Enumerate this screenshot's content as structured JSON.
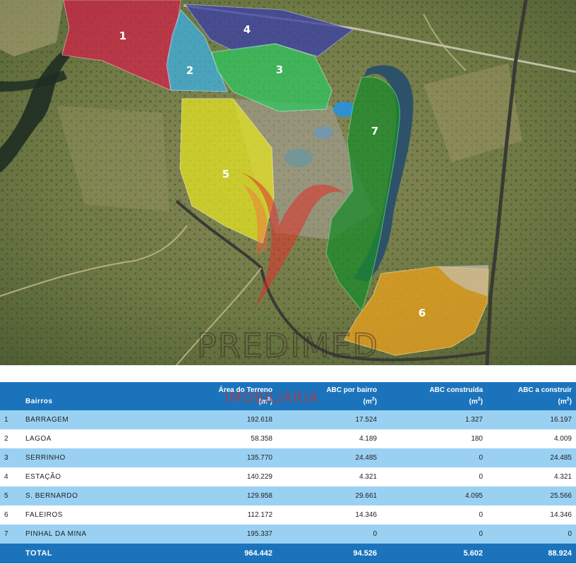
{
  "map": {
    "zones": [
      {
        "id": "1",
        "color": "#d42048"
      },
      {
        "id": "2",
        "color": "#3ab2e6"
      },
      {
        "id": "3",
        "color": "#2fc55e"
      },
      {
        "id": "4",
        "color": "#3a3ea8"
      },
      {
        "id": "5",
        "color": "#e6e620"
      },
      {
        "id": "6",
        "color": "#e6a020"
      },
      {
        "id": "7",
        "color": "#1a8a2a"
      }
    ],
    "watermark": {
      "brand": "PREDIMED",
      "sub": "IMOBILIÁRIA"
    }
  },
  "table": {
    "headers": {
      "bairros": "Bairros",
      "area": "Área do Terreno",
      "abc_bairro": "ABC por bairro",
      "abc_construida": "ABC construída",
      "abc_construir": "ABC a construir",
      "unit": "(m",
      "unit_exp": "2",
      "unit_close": ")"
    },
    "rows": [
      {
        "idx": "1",
        "name": "BARRAGEM",
        "area": "192.618",
        "abc_bairro": "17.524",
        "abc_construida": "1.327",
        "abc_construir": "16.197"
      },
      {
        "idx": "2",
        "name": "LAGOA",
        "area": "58.358",
        "abc_bairro": "4.189",
        "abc_construida": "180",
        "abc_construir": "4.009"
      },
      {
        "idx": "3",
        "name": "SERRINHO",
        "area": "135.770",
        "abc_bairro": "24.485",
        "abc_construida": "0",
        "abc_construir": "24.485"
      },
      {
        "idx": "4",
        "name": "ESTAÇÃO",
        "area": "140.229",
        "abc_bairro": "4.321",
        "abc_construida": "0",
        "abc_construir": "4.321"
      },
      {
        "idx": "5",
        "name": "S. BERNARDO",
        "area": "129.958",
        "abc_bairro": "29.661",
        "abc_construida": "4.095",
        "abc_construir": "25.566"
      },
      {
        "idx": "6",
        "name": "FALEIROS",
        "area": "112.172",
        "abc_bairro": "14.346",
        "abc_construida": "0",
        "abc_construir": "14.346"
      },
      {
        "idx": "7",
        "name": "PINHAL DA MINA",
        "area": "195.337",
        "abc_bairro": "0",
        "abc_construida": "0",
        "abc_construir": "0"
      }
    ],
    "total": {
      "label": "TOTAL",
      "area": "964.442",
      "abc_bairro": "94.526",
      "abc_construida": "5.602",
      "abc_construir": "88.924"
    }
  }
}
